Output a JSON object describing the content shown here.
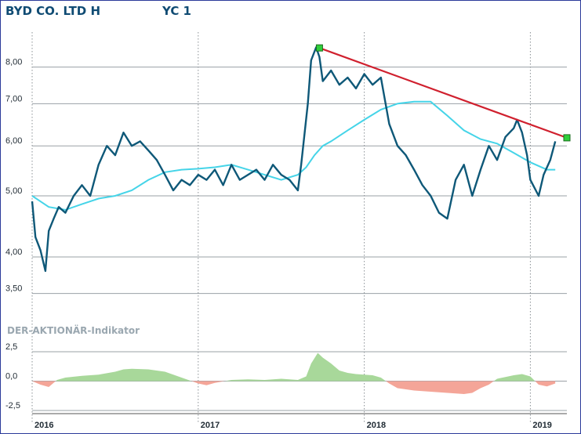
{
  "chart_data": [
    {
      "type": "line",
      "title": "BYD CO. LTD H",
      "subtitle": "YC 1",
      "y_scale": "log",
      "ylim": [
        3.2,
        9.3
      ],
      "xlim": [
        2016.0,
        2019.22
      ],
      "y_ticks": [
        "3,50",
        "4,00",
        "5,00",
        "6,00",
        "7,00",
        "8,00"
      ],
      "y_tick_values": [
        3.5,
        4.0,
        5.0,
        6.0,
        7.0,
        8.0
      ],
      "x_ticks": [
        "2016",
        "2017",
        "2018",
        "2019"
      ],
      "x_tick_values": [
        2016,
        2017,
        2018,
        2019
      ],
      "grid": true,
      "colors": {
        "price": "#0e5878",
        "moving_average": "#45d4e8",
        "trendline": "#d0202e",
        "marker": "#2fcf3a"
      },
      "series": [
        {
          "role": "price",
          "x": [
            2016.0,
            2016.02,
            2016.05,
            2016.08,
            2016.1,
            2016.13,
            2016.16,
            2016.2,
            2016.25,
            2016.3,
            2016.35,
            2016.4,
            2016.45,
            2016.5,
            2016.55,
            2016.6,
            2016.65,
            2016.7,
            2016.75,
            2016.8,
            2016.85,
            2016.9,
            2016.95,
            2017.0,
            2017.05,
            2017.1,
            2017.15,
            2017.2,
            2017.25,
            2017.3,
            2017.35,
            2017.4,
            2017.45,
            2017.5,
            2017.55,
            2017.6,
            2017.62,
            2017.66,
            2017.68,
            2017.71,
            2017.73,
            2017.75,
            2017.8,
            2017.85,
            2017.9,
            2017.95,
            2018.0,
            2018.05,
            2018.1,
            2018.15,
            2018.2,
            2018.25,
            2018.3,
            2018.35,
            2018.4,
            2018.45,
            2018.5,
            2018.55,
            2018.6,
            2018.65,
            2018.7,
            2018.75,
            2018.8,
            2018.85,
            2018.9,
            2018.92,
            2018.95,
            2018.98,
            2019.0,
            2019.05,
            2019.08,
            2019.12,
            2019.15
          ],
          "y": [
            4.9,
            4.3,
            4.1,
            3.8,
            4.4,
            4.6,
            4.8,
            4.7,
            5.0,
            5.2,
            5.0,
            5.6,
            6.0,
            5.8,
            6.3,
            6.0,
            6.1,
            5.9,
            5.7,
            5.4,
            5.1,
            5.3,
            5.2,
            5.4,
            5.3,
            5.5,
            5.2,
            5.6,
            5.3,
            5.4,
            5.5,
            5.3,
            5.6,
            5.4,
            5.3,
            5.1,
            5.6,
            7.0,
            8.2,
            8.6,
            8.3,
            7.6,
            7.9,
            7.5,
            7.7,
            7.4,
            7.8,
            7.5,
            7.7,
            6.5,
            6.0,
            5.8,
            5.5,
            5.2,
            5.0,
            4.7,
            4.6,
            5.3,
            5.6,
            5.0,
            5.5,
            6.0,
            5.7,
            6.2,
            6.4,
            6.6,
            6.3,
            5.8,
            5.3,
            5.0,
            5.4,
            5.7,
            6.1
          ]
        },
        {
          "role": "moving_average",
          "x": [
            2016.0,
            2016.1,
            2016.2,
            2016.3,
            2016.4,
            2016.5,
            2016.6,
            2016.7,
            2016.8,
            2016.9,
            2017.0,
            2017.1,
            2017.2,
            2017.3,
            2017.4,
            2017.5,
            2017.6,
            2017.65,
            2017.7,
            2017.75,
            2017.8,
            2017.9,
            2018.0,
            2018.1,
            2018.2,
            2018.3,
            2018.4,
            2018.5,
            2018.6,
            2018.7,
            2018.8,
            2018.9,
            2019.0,
            2019.1,
            2019.15
          ],
          "y": [
            5.0,
            4.8,
            4.75,
            4.85,
            4.95,
            5.0,
            5.1,
            5.3,
            5.45,
            5.5,
            5.52,
            5.55,
            5.6,
            5.5,
            5.4,
            5.3,
            5.4,
            5.55,
            5.8,
            6.0,
            6.1,
            6.35,
            6.6,
            6.85,
            7.0,
            7.05,
            7.05,
            6.7,
            6.35,
            6.15,
            6.05,
            5.85,
            5.65,
            5.5,
            5.5
          ]
        },
        {
          "role": "trendline",
          "x": [
            2017.73,
            2019.22
          ],
          "y": [
            8.58,
            6.18
          ]
        }
      ]
    },
    {
      "type": "area",
      "title": "DER-AKTIONÄR-Indikator",
      "ylim": [
        -2.5,
        2.5
      ],
      "y_ticks": [
        "2,5",
        "0,0",
        "-2,5"
      ],
      "y_tick_values": [
        2.5,
        0.0,
        -2.5
      ],
      "colors": {
        "positive": "#a8d89a",
        "negative": "#f4a598"
      },
      "series": [
        {
          "x": [
            2016.0,
            2016.05,
            2016.1,
            2016.15,
            2016.2,
            2016.3,
            2016.4,
            2016.5,
            2016.55,
            2016.6,
            2016.7,
            2016.8,
            2016.9,
            2016.95,
            2017.0,
            2017.05,
            2017.1,
            2017.2,
            2017.3,
            2017.4,
            2017.5,
            2017.6,
            2017.65,
            2017.68,
            2017.72,
            2017.75,
            2017.8,
            2017.85,
            2017.9,
            2017.95,
            2018.0,
            2018.05,
            2018.1,
            2018.15,
            2018.2,
            2018.3,
            2018.4,
            2018.5,
            2018.6,
            2018.65,
            2018.7,
            2018.75,
            2018.8,
            2018.85,
            2018.9,
            2018.95,
            2019.0,
            2019.05,
            2019.1,
            2019.15
          ],
          "y": [
            0,
            -0.3,
            -0.5,
            0.1,
            0.3,
            0.45,
            0.55,
            0.8,
            1.0,
            1.05,
            1.0,
            0.8,
            0.3,
            0.05,
            -0.2,
            -0.35,
            -0.15,
            0.1,
            0.15,
            0.1,
            0.2,
            0.1,
            0.4,
            1.5,
            2.4,
            2.0,
            1.5,
            0.9,
            0.7,
            0.6,
            0.55,
            0.5,
            0.3,
            -0.2,
            -0.6,
            -0.8,
            -0.9,
            -1.0,
            -1.1,
            -1.0,
            -0.6,
            -0.3,
            0.2,
            0.35,
            0.5,
            0.6,
            0.4,
            -0.3,
            -0.45,
            -0.2
          ]
        }
      ]
    }
  ]
}
